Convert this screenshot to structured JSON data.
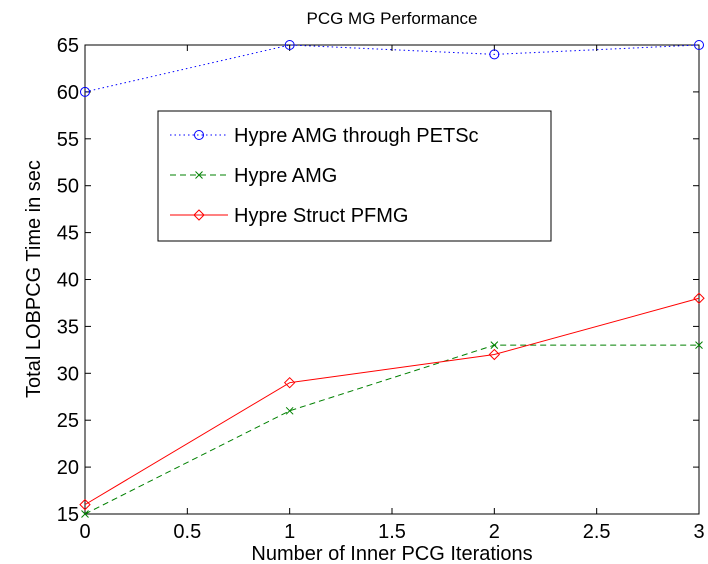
{
  "chart_data": {
    "type": "line",
    "title": "PCG MG Performance",
    "xlabel": "Number of Inner PCG Iterations",
    "ylabel": "Total LOBPCG Time in sec",
    "xlim": [
      0,
      3
    ],
    "ylim": [
      15,
      65
    ],
    "xticks": [
      "0",
      "0.5",
      "1",
      "1.5",
      "2",
      "2.5",
      "3"
    ],
    "yticks": [
      "15",
      "20",
      "25",
      "30",
      "35",
      "40",
      "45",
      "50",
      "55",
      "60",
      "65"
    ],
    "grid": false,
    "legend_position": "upper-center",
    "series": [
      {
        "name": "Hypre AMG through PETSc",
        "x": [
          0,
          1,
          2,
          3
        ],
        "y": [
          60,
          65,
          64,
          65
        ],
        "color": "#0000ff",
        "line_style": "dotted",
        "marker": "circle"
      },
      {
        "name": "Hypre AMG",
        "x": [
          0,
          1,
          2,
          3
        ],
        "y": [
          15,
          26,
          33,
          33
        ],
        "color": "#008000",
        "line_style": "dashed",
        "marker": "x"
      },
      {
        "name": "Hypre Struct PFMG",
        "x": [
          0,
          1,
          2,
          3
        ],
        "y": [
          16,
          29,
          32,
          38
        ],
        "color": "#ff0000",
        "line_style": "solid",
        "marker": "diamond"
      }
    ]
  }
}
